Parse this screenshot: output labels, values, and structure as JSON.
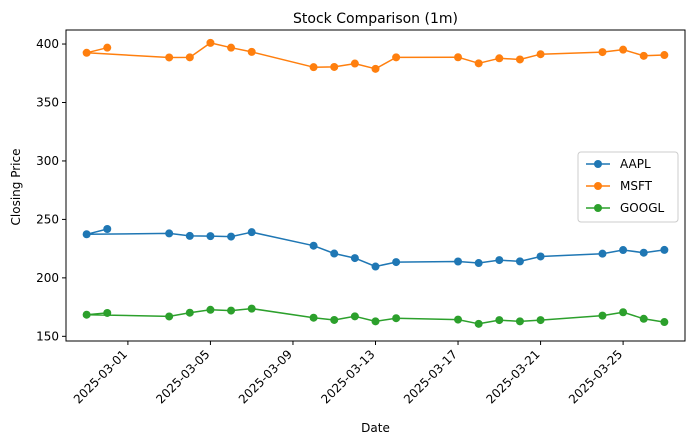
{
  "chart_data": {
    "type": "line",
    "title": "Stock Comparison (1m)",
    "xlabel": "Date",
    "ylabel": "Closing Price",
    "ylim": [
      146,
      412
    ],
    "yticks": [
      150,
      200,
      250,
      300,
      350,
      400
    ],
    "xlim": [
      "2025-02-26",
      "2025-03-28"
    ],
    "xticks": [
      "2025-03-01",
      "2025-03-05",
      "2025-03-09",
      "2025-03-13",
      "2025-03-17",
      "2025-03-21",
      "2025-03-25"
    ],
    "legend_position": "center-right",
    "x": [
      "2025-02-28",
      "2025-02-27",
      "2025-03-03",
      "2025-03-04",
      "2025-03-05",
      "2025-03-06",
      "2025-03-07",
      "2025-03-10",
      "2025-03-11",
      "2025-03-12",
      "2025-03-13",
      "2025-03-14",
      "2025-03-17",
      "2025-03-18",
      "2025-03-19",
      "2025-03-20",
      "2025-03-21",
      "2025-03-24",
      "2025-03-25",
      "2025-03-26",
      "2025-03-27"
    ],
    "series": [
      {
        "name": "AAPL",
        "color": "#1f77b4",
        "values": [
          241.8,
          237.3,
          238.0,
          235.9,
          235.7,
          235.3,
          239.1,
          227.5,
          220.8,
          216.9,
          209.7,
          213.5,
          214.0,
          212.7,
          215.2,
          214.1,
          218.3,
          220.7,
          223.8,
          221.5,
          223.9
        ]
      },
      {
        "name": "MSFT",
        "color": "#ff7f0e",
        "values": [
          396.9,
          392.5,
          388.5,
          388.6,
          401.0,
          396.9,
          393.3,
          380.2,
          380.4,
          383.3,
          378.8,
          388.6,
          388.7,
          383.5,
          387.8,
          386.8,
          391.3,
          393.1,
          395.2,
          389.9,
          390.6
        ]
      },
      {
        "name": "GOOGL",
        "color": "#2ca02c",
        "values": [
          170.0,
          168.5,
          167.0,
          170.2,
          172.7,
          172.0,
          173.7,
          165.9,
          164.0,
          167.1,
          162.8,
          165.5,
          164.3,
          160.7,
          163.9,
          162.8,
          163.9,
          167.7,
          170.6,
          165.0,
          162.2
        ]
      }
    ]
  }
}
